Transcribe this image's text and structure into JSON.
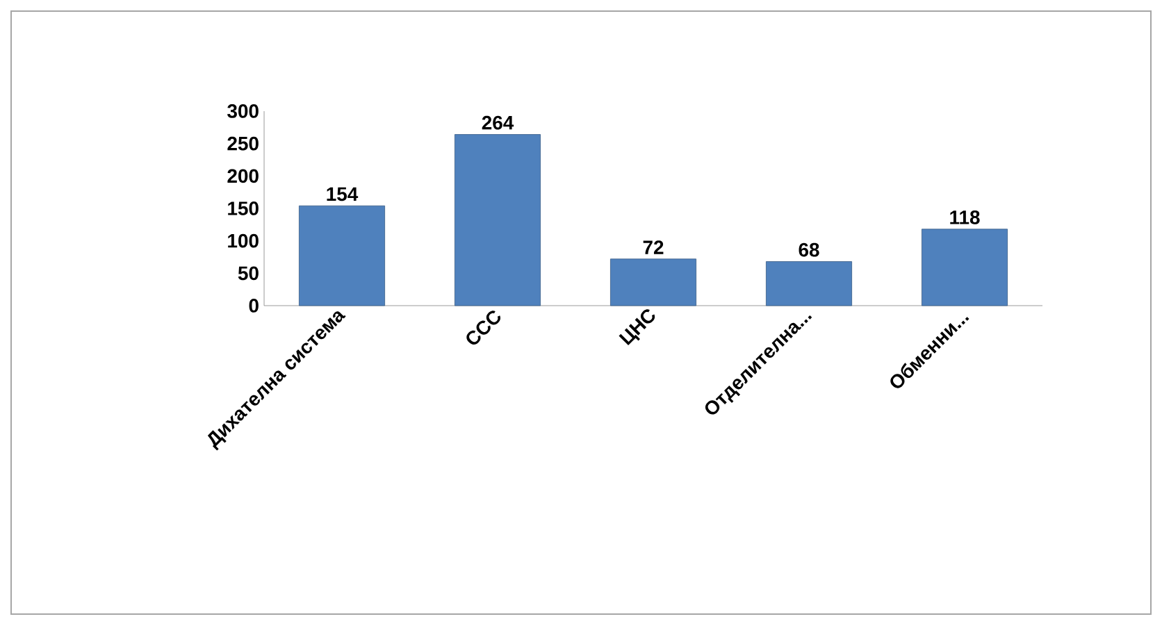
{
  "chart_data": {
    "type": "bar",
    "categories": [
      "Дихателна система",
      "ССС",
      "ЦНС",
      "Отделителна...",
      "Обменни..."
    ],
    "values": [
      154,
      264,
      72,
      68,
      118
    ],
    "color": "#4f81bd",
    "ylim": [
      0,
      300
    ],
    "yticks": [
      0,
      50,
      100,
      150,
      200,
      250,
      300
    ],
    "data_labels": true
  }
}
